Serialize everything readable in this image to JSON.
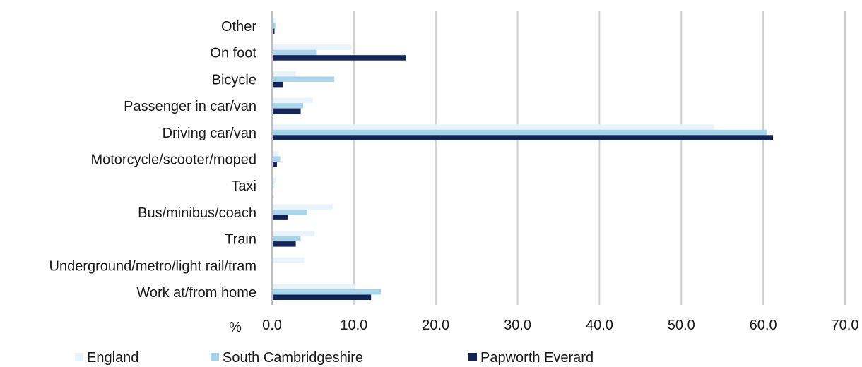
{
  "chart_data": {
    "type": "bar",
    "orientation": "horizontal",
    "categories": [
      "Other",
      "On foot",
      "Bicycle",
      "Passenger in car/van",
      "Driving car/van",
      "Motorcycle/scooter/moped",
      "Taxi",
      "Bus/minibus/coach",
      "Train",
      "Underground/metro/light rail/tram",
      "Work at/from home"
    ],
    "series": [
      {
        "name": "England",
        "color": "#e8f3fb",
        "values": [
          0.4,
          9.7,
          2.9,
          5.0,
          54.0,
          0.8,
          0.5,
          7.4,
          5.2,
          3.9,
          10.1
        ]
      },
      {
        "name": "South Cambridgeshire",
        "color": "#a9d5ea",
        "values": [
          0.4,
          5.4,
          7.6,
          3.8,
          60.5,
          1.0,
          0.2,
          4.3,
          3.5,
          0.0,
          13.3
        ]
      },
      {
        "name": "Papworth Everard",
        "color": "#142456",
        "values": [
          0.3,
          16.4,
          1.3,
          3.5,
          61.2,
          0.6,
          0.1,
          1.9,
          2.9,
          0.0,
          12.1
        ]
      }
    ],
    "xlim": [
      0,
      70
    ],
    "xticks": [
      "0.0",
      "10.0",
      "20.0",
      "30.0",
      "40.0",
      "50.0",
      "60.0",
      "70.0"
    ],
    "xunit": "%",
    "grid": true,
    "legend": "bottom"
  }
}
